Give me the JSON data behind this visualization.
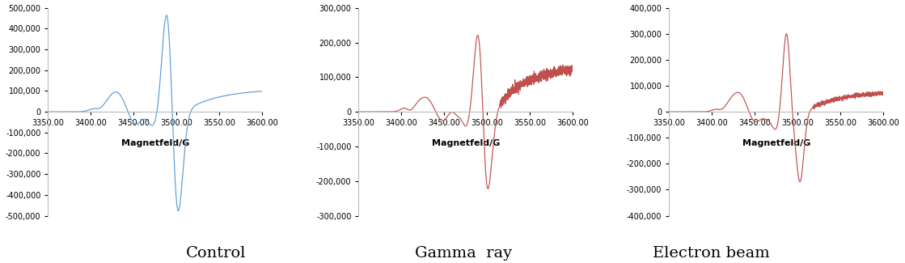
{
  "panels": [
    {
      "title": "Control",
      "color": "#5B9BD5",
      "ylim": [
        -500000,
        500000
      ],
      "yticks": [
        -500000,
        -400000,
        -300000,
        -200000,
        -100000,
        0,
        100000,
        200000,
        300000,
        400000,
        500000
      ]
    },
    {
      "title": "Gamma  ray",
      "color": "#C0504D",
      "ylim": [
        -300000,
        300000
      ],
      "yticks": [
        -300000,
        -200000,
        -100000,
        0,
        100000,
        200000,
        300000
      ]
    },
    {
      "title": "Electron beam",
      "color": "#C0504D",
      "ylim": [
        -400000,
        400000
      ],
      "yticks": [
        -400000,
        -300000,
        -200000,
        -100000,
        0,
        100000,
        200000,
        300000,
        400000
      ]
    }
  ],
  "xlim": [
    3350,
    3600
  ],
  "xticks": [
    3350.0,
    3400.0,
    3450.0,
    3500.0,
    3550.0,
    3600.0
  ],
  "xlabel": "Magnetfeld/G",
  "background_color": "#FFFFFF",
  "title_fontsize": 14,
  "xlabel_fontsize": 8,
  "tick_fontsize": 7
}
